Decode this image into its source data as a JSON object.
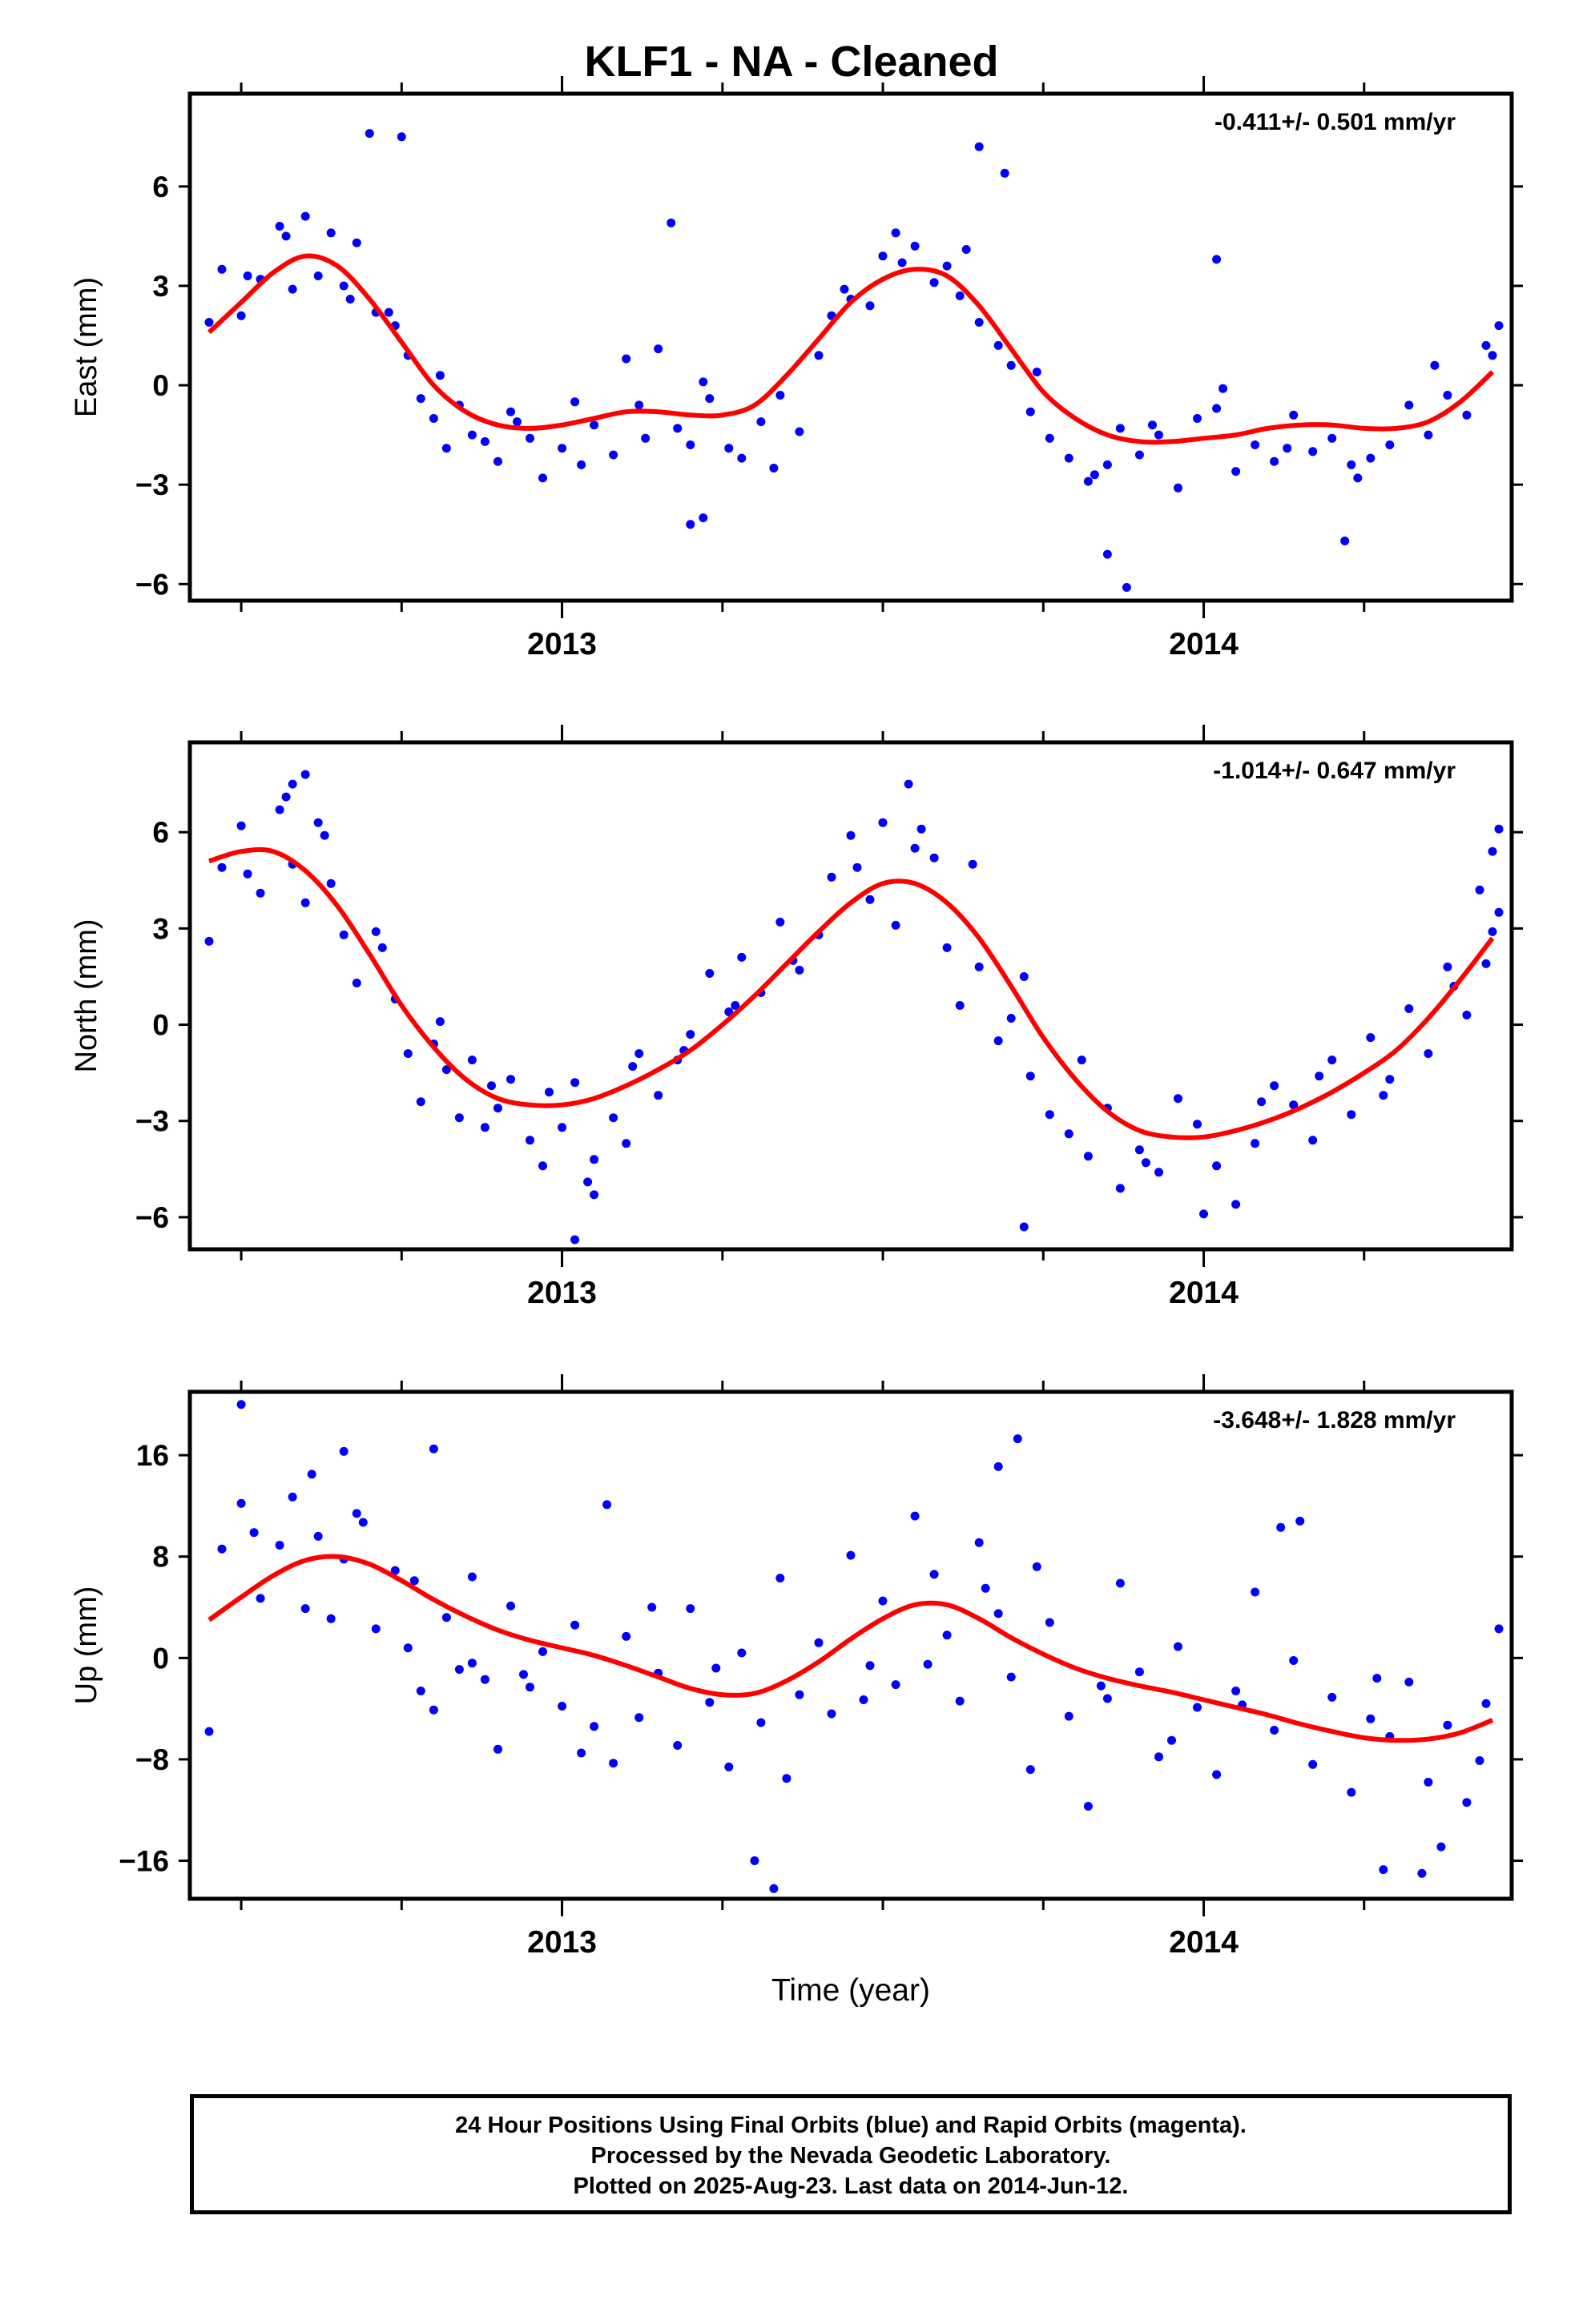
{
  "title": "KLF1  - NA - Cleaned",
  "footer": {
    "line1": "24 Hour Positions Using Final Orbits (blue) and Rapid Orbits (magenta).",
    "line2": "Processed by the Nevada Geodetic Laboratory.",
    "line3": "Plotted on 2025-Aug-23. Last data on 2014-Jun-12."
  },
  "colors": {
    "points": "#0000ff",
    "fit": "#ff0000",
    "axis": "#000000"
  },
  "chart_data": [
    {
      "type": "scatter",
      "ylabel": "East (mm)",
      "rate_label": "-0.411+/- 0.501 mm/yr",
      "xlim": [
        2012.42,
        2014.48
      ],
      "ylim": [
        -6.5,
        8.8
      ],
      "yticks": [
        -6,
        -3,
        0,
        3,
        6
      ],
      "xtick_labels": [
        "2013",
        "2014"
      ],
      "fit": {
        "x": [
          2012.45,
          2012.5,
          2012.55,
          2012.6,
          2012.65,
          2012.7,
          2012.75,
          2012.8,
          2012.85,
          2012.9,
          2012.95,
          2013.0,
          2013.05,
          2013.1,
          2013.15,
          2013.2,
          2013.25,
          2013.3,
          2013.35,
          2013.4,
          2013.45,
          2013.5,
          2013.55,
          2013.6,
          2013.65,
          2013.7,
          2013.75,
          2013.8,
          2013.85,
          2013.9,
          2013.95,
          2014.0,
          2014.05,
          2014.1,
          2014.15,
          2014.2,
          2014.25,
          2014.3,
          2014.35,
          2014.4,
          2014.45
        ],
        "y": [
          1.6,
          2.5,
          3.4,
          3.9,
          3.6,
          2.6,
          1.3,
          0.0,
          -0.8,
          -1.2,
          -1.3,
          -1.2,
          -1.0,
          -0.8,
          -0.8,
          -0.9,
          -0.9,
          -0.6,
          0.3,
          1.4,
          2.5,
          3.2,
          3.5,
          3.3,
          2.4,
          1.1,
          -0.2,
          -1.0,
          -1.5,
          -1.7,
          -1.7,
          -1.6,
          -1.5,
          -1.3,
          -1.2,
          -1.2,
          -1.3,
          -1.3,
          -1.1,
          -0.5,
          0.4
        ]
      },
      "points": {
        "x": [
          2012.45,
          2012.47,
          2012.5,
          2012.53,
          2012.56,
          2012.58,
          2012.6,
          2012.62,
          2012.64,
          2012.66,
          2012.68,
          2012.71,
          2012.74,
          2012.76,
          2012.78,
          2012.8,
          2012.82,
          2012.84,
          2012.86,
          2012.88,
          2012.9,
          2012.92,
          2012.95,
          2012.97,
          2013.0,
          2013.02,
          2013.05,
          2013.08,
          2013.1,
          2013.12,
          2013.15,
          2013.18,
          2013.2,
          2013.23,
          2013.26,
          2013.28,
          2013.31,
          2013.34,
          2013.37,
          2013.4,
          2013.42,
          2013.45,
          2013.48,
          2013.5,
          2013.52,
          2013.55,
          2013.58,
          2013.6,
          2013.62,
          2013.65,
          2013.68,
          2013.7,
          2013.73,
          2013.76,
          2013.79,
          2013.82,
          2013.85,
          2013.87,
          2013.9,
          2013.93,
          2013.96,
          2013.99,
          2014.02,
          2014.05,
          2014.08,
          2014.11,
          2014.14,
          2014.17,
          2014.2,
          2014.23,
          2014.26,
          2014.29,
          2014.32,
          2014.35,
          2014.38,
          2014.41,
          2014.44,
          2014.46,
          2012.51,
          2012.57,
          2012.67,
          2012.73,
          2012.81,
          2012.93,
          2013.03,
          2013.13,
          2013.22,
          2013.33,
          2013.44,
          2013.53,
          2013.63,
          2013.74,
          2013.83,
          2013.92,
          2014.03,
          2014.13,
          2014.24,
          2014.36,
          2014.45,
          2012.7,
          2012.75,
          2013.17,
          2013.65,
          2013.69,
          2013.85,
          2013.88,
          2014.02,
          2014.22,
          2013.2,
          2013.22
        ],
        "y": [
          1.9,
          3.5,
          2.1,
          3.2,
          4.8,
          2.9,
          5.1,
          3.3,
          4.6,
          3.0,
          4.3,
          2.2,
          1.8,
          0.9,
          -0.4,
          -1.0,
          -1.9,
          -0.6,
          -1.5,
          -1.7,
          -2.3,
          -0.8,
          -1.6,
          -2.8,
          -1.9,
          -0.5,
          -1.2,
          -2.1,
          0.8,
          -0.6,
          1.1,
          -1.3,
          -1.8,
          -0.4,
          -1.9,
          -2.2,
          -1.1,
          -0.3,
          -1.4,
          0.9,
          2.1,
          2.6,
          2.4,
          3.9,
          4.6,
          4.2,
          3.1,
          3.6,
          2.7,
          1.9,
          1.2,
          0.6,
          -0.8,
          -1.6,
          -2.2,
          -2.9,
          -2.4,
          -1.3,
          -2.1,
          -1.5,
          -3.1,
          -1.0,
          -0.7,
          -2.6,
          -1.8,
          -2.3,
          -0.9,
          -2.0,
          -1.6,
          -2.4,
          -2.2,
          -1.8,
          -0.6,
          -1.5,
          -0.3,
          -0.9,
          1.2,
          1.8,
          3.3,
          4.5,
          2.6,
          2.2,
          0.3,
          -1.1,
          -2.4,
          -1.6,
          0.1,
          -2.5,
          2.9,
          3.7,
          4.1,
          0.4,
          -2.7,
          -1.2,
          -0.1,
          -1.9,
          -2.8,
          0.6,
          0.9,
          7.6,
          7.5,
          4.9,
          7.2,
          6.4,
          -5.1,
          -6.1,
          3.8,
          -4.7,
          -4.2,
          -4.0
        ]
      }
    },
    {
      "type": "scatter",
      "ylabel": "North (mm)",
      "rate_label": "-1.014+/- 0.647 mm/yr",
      "xlim": [
        2012.42,
        2014.48
      ],
      "ylim": [
        -7.0,
        8.8
      ],
      "yticks": [
        -6,
        -3,
        0,
        3,
        6
      ],
      "xtick_labels": [
        "2013",
        "2014"
      ],
      "fit": {
        "x": [
          2012.45,
          2012.5,
          2012.55,
          2012.6,
          2012.65,
          2012.7,
          2012.75,
          2012.8,
          2012.85,
          2012.9,
          2012.95,
          2013.0,
          2013.05,
          2013.1,
          2013.15,
          2013.2,
          2013.25,
          2013.3,
          2013.35,
          2013.4,
          2013.45,
          2013.5,
          2013.55,
          2013.6,
          2013.65,
          2013.7,
          2013.75,
          2013.8,
          2013.85,
          2013.9,
          2013.95,
          2014.0,
          2014.05,
          2014.1,
          2014.15,
          2014.2,
          2014.25,
          2014.3,
          2014.35,
          2014.4,
          2014.45
        ],
        "y": [
          5.1,
          5.4,
          5.4,
          4.8,
          3.7,
          2.2,
          0.6,
          -0.7,
          -1.7,
          -2.3,
          -2.5,
          -2.5,
          -2.3,
          -1.9,
          -1.4,
          -0.8,
          0.0,
          0.9,
          1.9,
          2.9,
          3.8,
          4.4,
          4.4,
          3.8,
          2.7,
          1.2,
          -0.4,
          -1.7,
          -2.7,
          -3.3,
          -3.5,
          -3.5,
          -3.3,
          -3.0,
          -2.6,
          -2.1,
          -1.5,
          -0.8,
          0.2,
          1.4,
          2.7
        ]
      },
      "points": {
        "x": [
          2012.45,
          2012.47,
          2012.5,
          2012.53,
          2012.56,
          2012.58,
          2012.6,
          2012.62,
          2012.64,
          2012.66,
          2012.68,
          2012.71,
          2012.74,
          2012.76,
          2012.78,
          2012.8,
          2012.82,
          2012.84,
          2012.86,
          2012.88,
          2012.9,
          2012.92,
          2012.95,
          2012.97,
          2013.0,
          2013.02,
          2013.05,
          2013.08,
          2013.1,
          2013.12,
          2013.15,
          2013.18,
          2013.2,
          2013.23,
          2013.26,
          2013.28,
          2013.31,
          2013.34,
          2013.37,
          2013.4,
          2013.42,
          2013.45,
          2013.48,
          2013.5,
          2013.52,
          2013.55,
          2013.58,
          2013.6,
          2013.62,
          2013.65,
          2013.68,
          2013.7,
          2013.73,
          2013.76,
          2013.79,
          2013.82,
          2013.85,
          2013.87,
          2013.9,
          2013.93,
          2013.96,
          2013.99,
          2014.02,
          2014.05,
          2014.08,
          2014.11,
          2014.14,
          2014.17,
          2014.2,
          2014.23,
          2014.26,
          2014.29,
          2014.32,
          2014.35,
          2014.38,
          2014.41,
          2014.44,
          2014.46,
          2012.51,
          2012.57,
          2012.63,
          2012.72,
          2012.81,
          2012.89,
          2012.98,
          2013.04,
          2013.11,
          2013.19,
          2013.27,
          2013.36,
          2013.46,
          2013.56,
          2013.64,
          2013.72,
          2013.81,
          2013.91,
          2014.0,
          2014.09,
          2014.18,
          2014.28,
          2014.39,
          2014.45,
          2012.58,
          2012.6,
          2013.02,
          2013.05,
          2013.72,
          2013.54,
          2014.46,
          2014.45,
          2014.43
        ],
        "y": [
          2.6,
          4.9,
          6.2,
          4.1,
          6.7,
          5.0,
          3.8,
          6.3,
          4.4,
          2.8,
          1.3,
          2.9,
          0.8,
          -0.9,
          -2.4,
          -0.6,
          -1.4,
          -2.9,
          -1.1,
          -3.2,
          -2.6,
          -1.7,
          -3.6,
          -4.4,
          -3.2,
          -1.8,
          -4.2,
          -2.9,
          -3.7,
          -0.9,
          -2.2,
          -1.1,
          -0.3,
          1.6,
          0.4,
          2.1,
          1.0,
          3.2,
          1.7,
          2.8,
          4.6,
          5.9,
          3.9,
          6.3,
          3.1,
          5.5,
          5.2,
          2.4,
          0.6,
          1.8,
          -0.5,
          0.2,
          -1.6,
          -2.8,
          -3.4,
          -4.1,
          -2.6,
          -5.1,
          -3.9,
          -4.6,
          -2.3,
          -3.1,
          -4.4,
          -5.6,
          -3.7,
          -1.9,
          -2.5,
          -3.6,
          -1.1,
          -2.8,
          -0.4,
          -1.7,
          0.5,
          -0.9,
          1.8,
          0.3,
          1.9,
          3.5,
          4.7,
          7.1,
          5.9,
          2.4,
          0.1,
          -1.9,
          -2.1,
          -4.9,
          -1.3,
          -0.8,
          0.6,
          2.0,
          4.9,
          6.1,
          5.0,
          1.5,
          -1.1,
          -4.3,
          -5.9,
          -2.4,
          -1.6,
          -2.2,
          1.2,
          2.9,
          7.5,
          7.8,
          -6.7,
          -5.3,
          -6.3,
          7.5,
          6.1,
          5.4,
          4.2
        ]
      }
    },
    {
      "type": "scatter",
      "ylabel": "Up (mm)",
      "xlabel": "Time (year)",
      "rate_label": "-3.648+/- 1.828 mm/yr",
      "xlim": [
        2012.42,
        2014.48
      ],
      "ylim": [
        -19,
        21
      ],
      "yticks": [
        -16,
        -8,
        0,
        8,
        16
      ],
      "xtick_labels": [
        "2013",
        "2014"
      ],
      "fit": {
        "x": [
          2012.45,
          2012.5,
          2012.55,
          2012.6,
          2012.65,
          2012.7,
          2012.75,
          2012.8,
          2012.85,
          2012.9,
          2012.95,
          2013.0,
          2013.05,
          2013.1,
          2013.15,
          2013.2,
          2013.25,
          2013.3,
          2013.35,
          2013.4,
          2013.45,
          2013.5,
          2013.55,
          2013.6,
          2013.65,
          2013.7,
          2013.75,
          2013.8,
          2013.85,
          2013.9,
          2013.95,
          2014.0,
          2014.05,
          2014.1,
          2014.15,
          2014.2,
          2014.25,
          2014.3,
          2014.35,
          2014.4,
          2014.45
        ],
        "y": [
          3.0,
          4.8,
          6.5,
          7.7,
          8.0,
          7.4,
          6.1,
          4.6,
          3.3,
          2.2,
          1.4,
          0.8,
          0.2,
          -0.6,
          -1.5,
          -2.4,
          -2.9,
          -2.8,
          -1.8,
          -0.3,
          1.5,
          3.1,
          4.2,
          4.2,
          3.1,
          1.6,
          0.3,
          -0.8,
          -1.6,
          -2.2,
          -2.7,
          -3.3,
          -3.9,
          -4.5,
          -5.2,
          -5.8,
          -6.3,
          -6.5,
          -6.4,
          -5.9,
          -4.9
        ]
      },
      "points": {
        "x": [
          2012.45,
          2012.47,
          2012.5,
          2012.53,
          2012.56,
          2012.58,
          2012.6,
          2012.62,
          2012.64,
          2012.66,
          2012.68,
          2012.71,
          2012.74,
          2012.76,
          2012.78,
          2012.8,
          2012.82,
          2012.84,
          2012.86,
          2012.88,
          2012.9,
          2012.92,
          2012.95,
          2012.97,
          2013.0,
          2013.02,
          2013.05,
          2013.08,
          2013.1,
          2013.12,
          2013.15,
          2013.18,
          2013.2,
          2013.23,
          2013.26,
          2013.28,
          2013.31,
          2013.34,
          2013.37,
          2013.4,
          2013.42,
          2013.45,
          2013.48,
          2013.5,
          2013.52,
          2013.55,
          2013.58,
          2013.6,
          2013.62,
          2013.65,
          2013.68,
          2013.7,
          2013.73,
          2013.76,
          2013.79,
          2013.82,
          2013.85,
          2013.87,
          2013.9,
          2013.93,
          2013.96,
          2013.99,
          2014.02,
          2014.05,
          2014.08,
          2014.11,
          2014.14,
          2014.17,
          2014.2,
          2014.23,
          2014.26,
          2014.29,
          2014.32,
          2014.35,
          2014.38,
          2014.41,
          2014.44,
          2014.46,
          2012.52,
          2012.61,
          2012.69,
          2012.77,
          2012.86,
          2012.94,
          2013.03,
          2013.14,
          2013.24,
          2013.35,
          2013.47,
          2013.57,
          2013.66,
          2013.74,
          2013.84,
          2013.95,
          2014.06,
          2014.15,
          2014.27,
          2014.37,
          2014.43,
          2012.5,
          2012.66,
          2012.8,
          2013.33,
          2013.3,
          2013.71,
          2013.68,
          2014.28,
          2014.34,
          2014.12,
          2013.07
        ],
        "y": [
          -5.8,
          8.6,
          12.2,
          4.7,
          8.9,
          12.7,
          3.9,
          9.6,
          3.1,
          7.8,
          11.4,
          2.3,
          6.9,
          0.8,
          -2.6,
          -4.1,
          3.2,
          -0.9,
          6.4,
          -1.7,
          -7.2,
          4.1,
          -2.3,
          0.5,
          -3.8,
          2.6,
          -5.4,
          -8.3,
          1.7,
          -4.7,
          -1.2,
          -6.9,
          3.9,
          -3.5,
          -8.6,
          0.4,
          -5.1,
          6.3,
          -2.9,
          1.2,
          -4.4,
          8.1,
          -0.6,
          4.5,
          -2.1,
          11.2,
          6.6,
          1.8,
          -3.4,
          9.1,
          3.5,
          -1.5,
          -8.8,
          2.8,
          -4.6,
          -11.7,
          -3.2,
          5.9,
          -1.1,
          -7.8,
          0.9,
          -3.9,
          -9.2,
          -2.6,
          5.2,
          -5.7,
          -0.2,
          -8.4,
          -3.1,
          -10.6,
          -4.8,
          -6.2,
          -1.9,
          -9.8,
          -5.3,
          -11.4,
          -3.6,
          2.3,
          9.9,
          14.5,
          10.7,
          6.1,
          -0.4,
          -1.3,
          -7.5,
          4.0,
          -0.8,
          -9.5,
          -3.3,
          -0.5,
          5.5,
          7.2,
          -2.2,
          -6.5,
          -3.7,
          10.8,
          -1.6,
          -14.9,
          -8.1,
          20.0,
          16.3,
          16.5,
          -18.2,
          -16.0,
          17.3,
          15.1,
          -16.7,
          -17.0,
          10.3,
          12.1
        ]
      }
    }
  ]
}
